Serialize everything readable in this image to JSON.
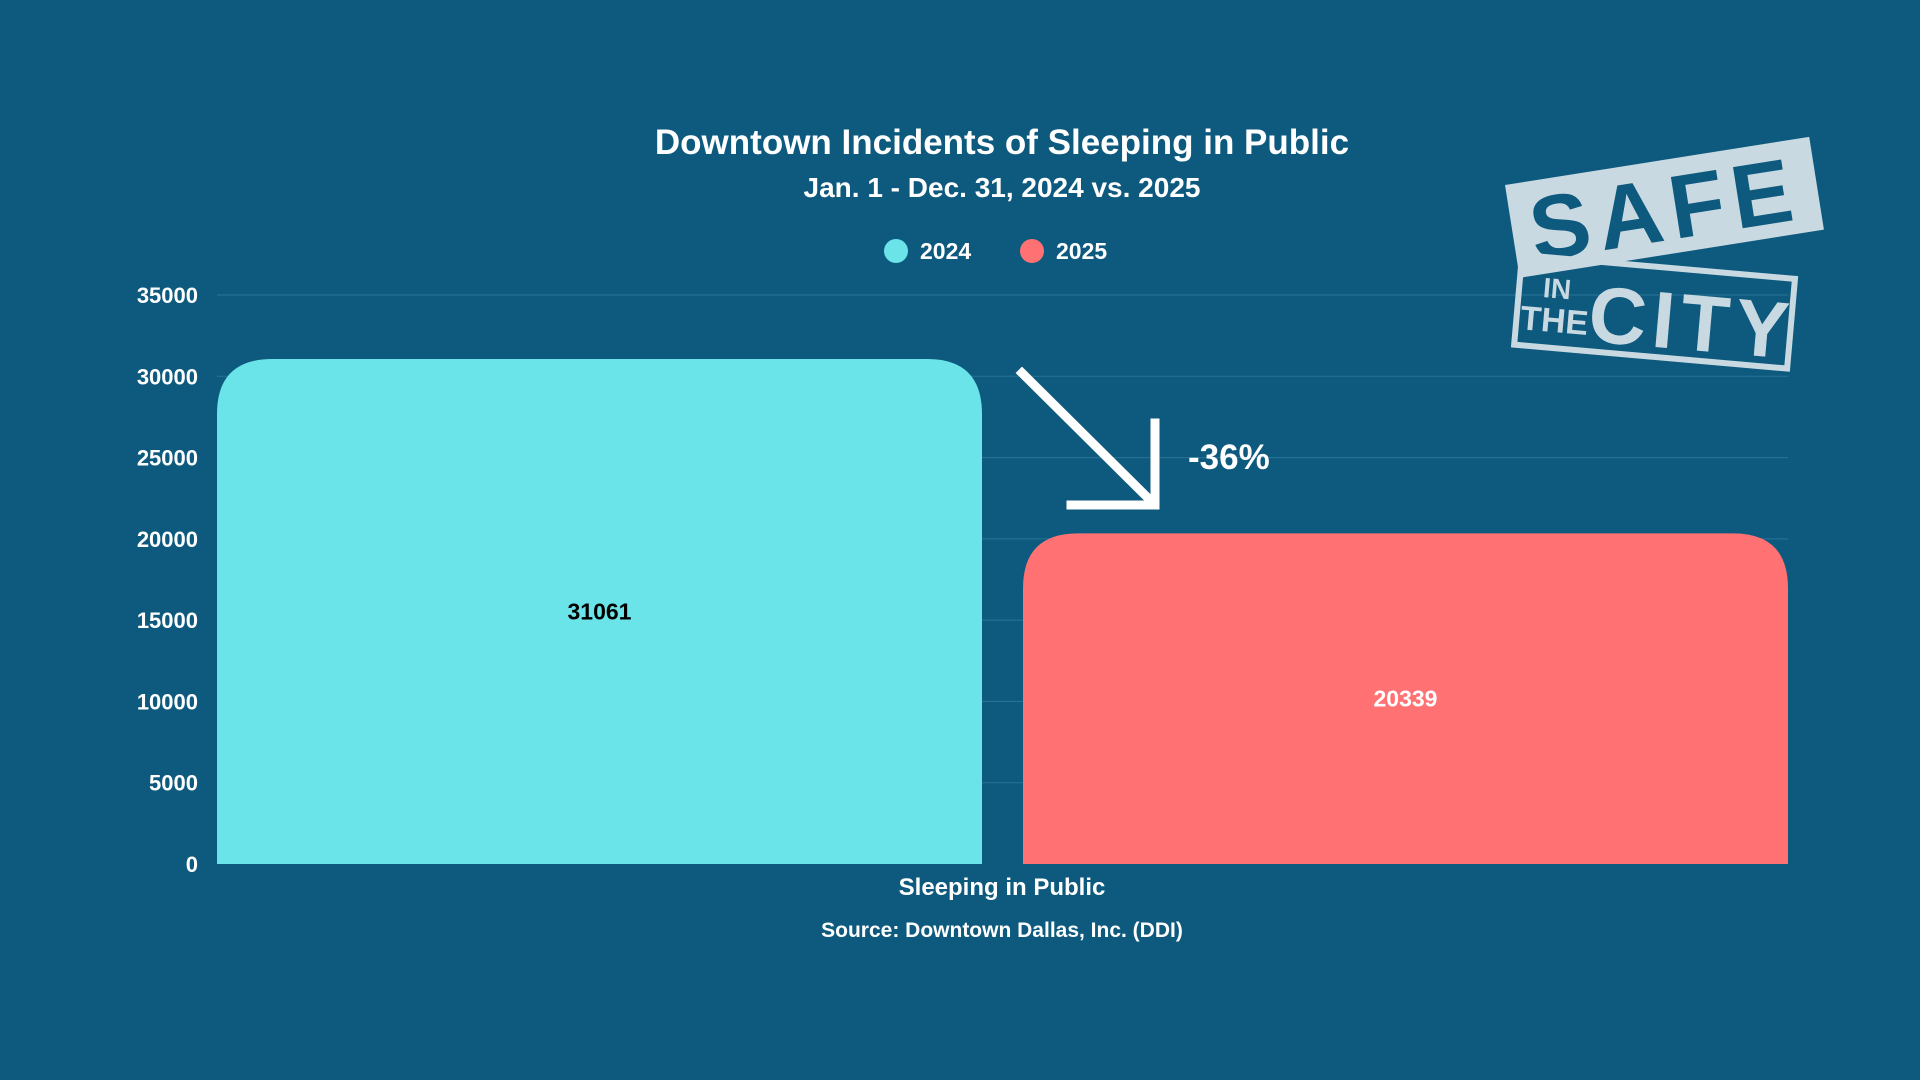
{
  "chart_data": {
    "type": "bar",
    "title": "Downtown Incidents of Sleeping in Public",
    "subtitle": "Jan. 1 - Dec. 31, 2024 vs. 2025",
    "categories": [
      "Sleeping in Public"
    ],
    "series": [
      {
        "name": "2024",
        "values": [
          31061
        ],
        "color": "#6ae4e8",
        "label_color": "#000000"
      },
      {
        "name": "2025",
        "values": [
          20339
        ],
        "color": "#ff7173",
        "label_color": "#ffffff"
      }
    ],
    "ylim": [
      0,
      35000
    ],
    "yticks": [
      0,
      5000,
      10000,
      15000,
      20000,
      25000,
      30000,
      35000
    ],
    "grid": true,
    "legend_position": "top-center",
    "annotation": "-36%",
    "source": "Source: Downtown Dallas, Inc. (DDI)"
  },
  "logo": {
    "line1": "SAFE",
    "line2a": "IN",
    "line2b": "THE",
    "line3": "CITY"
  },
  "colors": {
    "background": "#0d5a7e",
    "grid": "#2a7398",
    "text": "#ffffff",
    "logo": "#c9d9e2"
  }
}
